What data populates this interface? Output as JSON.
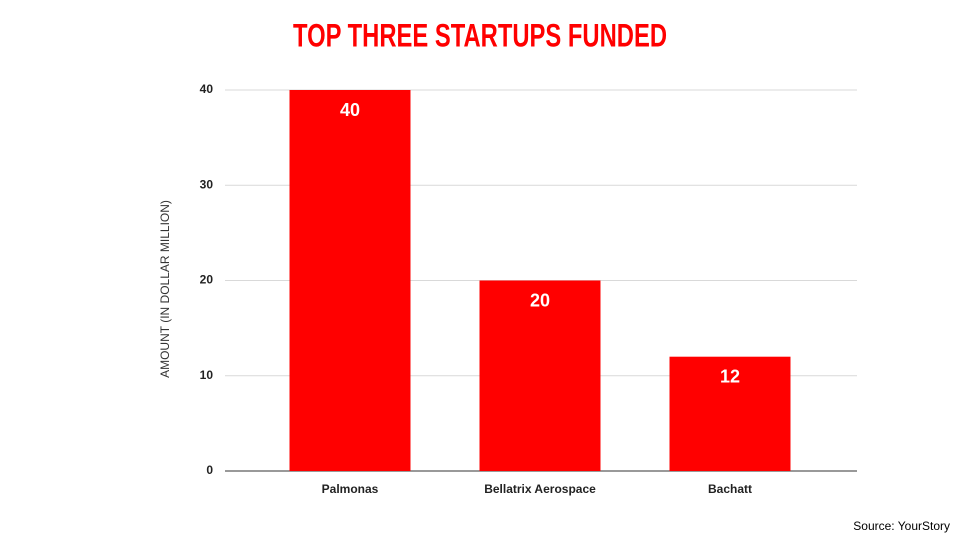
{
  "chart_data": {
    "type": "bar",
    "title": "TOP THREE STARTUPS FUNDED",
    "y_label": "AMOUNT (IN DOLLAR MILLION)",
    "categories": [
      "Palmonas",
      "Bellatrix Aerospace",
      "Bachatt"
    ],
    "values": [
      40,
      20,
      12
    ],
    "color": "#ff0000",
    "ylim": [
      0,
      40
    ],
    "yticks": [
      0,
      10,
      20,
      30,
      40
    ],
    "grid": true,
    "source": "Source: YourStory"
  }
}
